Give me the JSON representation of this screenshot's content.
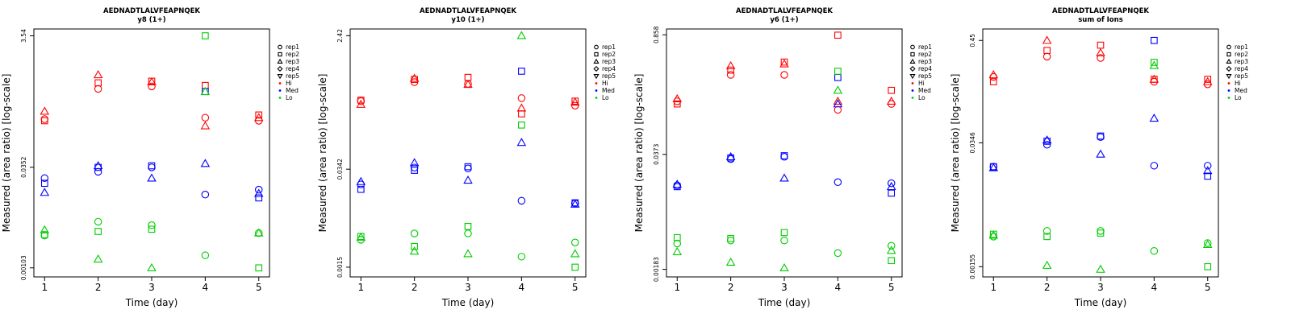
{
  "colors": {
    "Hi": "#ff0000",
    "Med": "#0000ff",
    "Lo": "#00cc00"
  },
  "legend": {
    "placement": "right",
    "reps": [
      {
        "label": "rep1",
        "symbol": "circle"
      },
      {
        "label": "rep2",
        "symbol": "square"
      },
      {
        "label": "rep3",
        "symbol": "triangle-up"
      },
      {
        "label": "rep4",
        "symbol": "diamond"
      },
      {
        "label": "rep5",
        "symbol": "triangle-down"
      }
    ],
    "groups": [
      {
        "label": "Hi",
        "color": "#ff0000"
      },
      {
        "label": "Med",
        "color": "#0000ff"
      },
      {
        "label": "Lo",
        "color": "#00cc00"
      }
    ]
  },
  "chart_data": [
    {
      "type": "scatter",
      "title": "AEDNADTLALVFEAPNQEK",
      "subtitle": "y8 (1+)",
      "xlabel": "Time (day)",
      "ylabel": "Measured (area ratio) [log-scale]",
      "log_y": true,
      "x_ticks": [
        1,
        2,
        3,
        4,
        5
      ],
      "y_ticks": [
        "0.00103",
        "0.0352",
        "3.54"
      ],
      "y_tick_values": [
        0.00103,
        0.0352,
        3.54
      ],
      "xlim": [
        0.8,
        5.2
      ],
      "ylim": [
        0.00075,
        4.5
      ],
      "series": [
        {
          "group": "Hi",
          "rep": "rep1",
          "points": [
            [
              1,
              0.19
            ],
            [
              2,
              0.55
            ],
            [
              3,
              0.6
            ],
            [
              4,
              0.2
            ],
            [
              5,
              0.18
            ]
          ]
        },
        {
          "group": "Hi",
          "rep": "rep2",
          "points": [
            [
              1,
              0.18
            ],
            [
              2,
              0.68
            ],
            [
              3,
              0.72
            ],
            [
              4,
              0.62
            ],
            [
              5,
              0.22
            ]
          ]
        },
        {
          "group": "Hi",
          "rep": "rep3",
          "points": [
            [
              1,
              0.25
            ],
            [
              2,
              0.9
            ],
            [
              3,
              0.7
            ],
            [
              4,
              0.15
            ],
            [
              5,
              0.2
            ]
          ]
        },
        {
          "group": "Med",
          "rep": "rep1",
          "points": [
            [
              1,
              0.024
            ],
            [
              2,
              0.03
            ],
            [
              3,
              0.035
            ],
            [
              4,
              0.0135
            ],
            [
              5,
              0.016
            ]
          ]
        },
        {
          "group": "Med",
          "rep": "rep2",
          "points": [
            [
              1,
              0.02
            ],
            [
              2,
              0.035
            ],
            [
              3,
              0.037
            ],
            [
              4,
              0.5
            ],
            [
              5,
              0.012
            ]
          ]
        },
        {
          "group": "Med",
          "rep": "rep3",
          "points": [
            [
              1,
              0.0145
            ],
            [
              2,
              0.037
            ],
            [
              3,
              0.024
            ],
            [
              4,
              0.04
            ],
            [
              5,
              0.014
            ]
          ]
        },
        {
          "group": "Lo",
          "rep": "rep1",
          "points": [
            [
              1,
              0.0032
            ],
            [
              2,
              0.0052
            ],
            [
              3,
              0.0046
            ],
            [
              4,
              0.0016
            ],
            [
              5,
              0.0035
            ]
          ]
        },
        {
          "group": "Lo",
          "rep": "rep2",
          "points": [
            [
              1,
              0.0033
            ],
            [
              2,
              0.0037
            ],
            [
              3,
              0.004
            ],
            [
              4,
              3.54
            ],
            [
              5,
              0.00103
            ]
          ]
        },
        {
          "group": "Lo",
          "rep": "rep3",
          "points": [
            [
              1,
              0.0039
            ],
            [
              2,
              0.0014
            ],
            [
              3,
              0.00103
            ],
            [
              4,
              0.5
            ],
            [
              5,
              0.0035
            ]
          ]
        }
      ]
    },
    {
      "type": "scatter",
      "title": "AEDNADTLALVFEAPNQEK",
      "subtitle": "y10 (1+)",
      "xlabel": "Time (day)",
      "ylabel": "Measured (area ratio) [log-scale]",
      "log_y": true,
      "x_ticks": [
        1,
        2,
        3,
        4,
        5
      ],
      "y_ticks": [
        "0.0015",
        "0.0342",
        "2.42"
      ],
      "y_tick_values": [
        0.0015,
        0.0342,
        2.42
      ],
      "xlim": [
        0.8,
        5.2
      ],
      "ylim": [
        0.0011,
        3.0
      ],
      "series": [
        {
          "group": "Hi",
          "rep": "rep1",
          "points": [
            [
              1,
              0.3
            ],
            [
              2,
              0.55
            ],
            [
              3,
              0.52
            ],
            [
              4,
              0.33
            ],
            [
              5,
              0.26
            ]
          ]
        },
        {
          "group": "Hi",
          "rep": "rep2",
          "points": [
            [
              1,
              0.31
            ],
            [
              2,
              0.6
            ],
            [
              3,
              0.64
            ],
            [
              4,
              0.2
            ],
            [
              5,
              0.3
            ]
          ]
        },
        {
          "group": "Hi",
          "rep": "rep3",
          "points": [
            [
              1,
              0.27
            ],
            [
              2,
              0.62
            ],
            [
              3,
              0.51
            ],
            [
              4,
              0.24
            ],
            [
              5,
              0.29
            ]
          ]
        },
        {
          "group": "Med",
          "rep": "rep1",
          "points": [
            [
              1,
              0.021
            ],
            [
              2,
              0.036
            ],
            [
              3,
              0.035
            ],
            [
              4,
              0.0125
            ],
            [
              5,
              0.0115
            ]
          ]
        },
        {
          "group": "Med",
          "rep": "rep2",
          "points": [
            [
              1,
              0.018
            ],
            [
              2,
              0.033
            ],
            [
              3,
              0.037
            ],
            [
              4,
              0.78
            ],
            [
              5,
              0.0117
            ]
          ]
        },
        {
          "group": "Med",
          "rep": "rep3",
          "points": [
            [
              1,
              0.023
            ],
            [
              2,
              0.042
            ],
            [
              3,
              0.024
            ],
            [
              4,
              0.08
            ],
            [
              5,
              0.0112
            ]
          ]
        },
        {
          "group": "Lo",
          "rep": "rep1",
          "points": [
            [
              1,
              0.0036
            ],
            [
              2,
              0.0044
            ],
            [
              3,
              0.0044
            ],
            [
              4,
              0.0021
            ],
            [
              5,
              0.0033
            ]
          ]
        },
        {
          "group": "Lo",
          "rep": "rep2",
          "points": [
            [
              1,
              0.004
            ],
            [
              2,
              0.0029
            ],
            [
              3,
              0.0055
            ],
            [
              4,
              0.14
            ],
            [
              5,
              0.0015
            ]
          ]
        },
        {
          "group": "Lo",
          "rep": "rep3",
          "points": [
            [
              1,
              0.0039
            ],
            [
              2,
              0.0025
            ],
            [
              3,
              0.0023
            ],
            [
              4,
              2.42
            ],
            [
              5,
              0.0023
            ]
          ]
        }
      ]
    },
    {
      "type": "scatter",
      "title": "AEDNADTLALVFEAPNQEK",
      "subtitle": "y6 (1+)",
      "xlabel": "Time (day)",
      "ylabel": "Measured (area ratio) [log-scale]",
      "log_y": true,
      "x_ticks": [
        1,
        2,
        3,
        4,
        5
      ],
      "y_ticks": [
        "0.00183",
        "0.0373",
        "0.858"
      ],
      "y_tick_values": [
        0.00183,
        0.0373,
        0.858
      ],
      "xlim": [
        0.8,
        5.2
      ],
      "ylim": [
        0.0015,
        1.0
      ],
      "series": [
        {
          "group": "Hi",
          "rep": "rep1",
          "points": [
            [
              1,
              0.15
            ],
            [
              2,
              0.3
            ],
            [
              3,
              0.3
            ],
            [
              4,
              0.12
            ],
            [
              5,
              0.14
            ]
          ]
        },
        {
          "group": "Hi",
          "rep": "rep2",
          "points": [
            [
              1,
              0.14
            ],
            [
              2,
              0.34
            ],
            [
              3,
              0.42
            ],
            [
              4,
              0.85
            ],
            [
              5,
              0.2
            ]
          ]
        },
        {
          "group": "Hi",
          "rep": "rep3",
          "points": [
            [
              1,
              0.16
            ],
            [
              2,
              0.38
            ],
            [
              3,
              0.4
            ],
            [
              4,
              0.15
            ],
            [
              5,
              0.15
            ]
          ]
        },
        {
          "group": "Med",
          "rep": "rep1",
          "points": [
            [
              1,
              0.0165
            ],
            [
              2,
              0.033
            ],
            [
              3,
              0.035
            ],
            [
              4,
              0.018
            ],
            [
              5,
              0.0175
            ]
          ]
        },
        {
          "group": "Med",
          "rep": "rep2",
          "points": [
            [
              1,
              0.016
            ],
            [
              2,
              0.034
            ],
            [
              3,
              0.036
            ],
            [
              4,
              0.28
            ],
            [
              5,
              0.0135
            ]
          ]
        },
        {
          "group": "Med",
          "rep": "rep3",
          "points": [
            [
              1,
              0.017
            ],
            [
              2,
              0.035
            ],
            [
              3,
              0.02
            ],
            [
              4,
              0.14
            ],
            [
              5,
              0.016
            ]
          ]
        },
        {
          "group": "Lo",
          "rep": "rep1",
          "points": [
            [
              1,
              0.0036
            ],
            [
              2,
              0.0039
            ],
            [
              3,
              0.0039
            ],
            [
              4,
              0.0028
            ],
            [
              5,
              0.0034
            ]
          ]
        },
        {
          "group": "Lo",
          "rep": "rep2",
          "points": [
            [
              1,
              0.0042
            ],
            [
              2,
              0.0041
            ],
            [
              3,
              0.0048
            ],
            [
              4,
              0.33
            ],
            [
              5,
              0.0023
            ]
          ]
        },
        {
          "group": "Lo",
          "rep": "rep3",
          "points": [
            [
              1,
              0.0029
            ],
            [
              2,
              0.0022
            ],
            [
              3,
              0.0019
            ],
            [
              4,
              0.2
            ],
            [
              5,
              0.003
            ]
          ]
        }
      ]
    },
    {
      "type": "scatter",
      "title": "AEDNADTLALVFEAPNQEK",
      "subtitle": "sum of Ions",
      "xlabel": "Time (day)",
      "ylabel": "Measured (area ratio) [log-scale]",
      "log_y": true,
      "x_ticks": [
        1,
        2,
        3,
        4,
        5
      ],
      "y_ticks": [
        "0.00155",
        "0.0346",
        "0.45"
      ],
      "y_tick_values": [
        0.00155,
        0.0346,
        0.45
      ],
      "xlim": [
        0.8,
        5.2
      ],
      "ylim": [
        0.0012,
        0.6
      ],
      "series": [
        {
          "group": "Hi",
          "rep": "rep1",
          "points": [
            [
              1,
              0.18
            ],
            [
              2,
              0.3
            ],
            [
              3,
              0.29
            ],
            [
              4,
              0.16
            ],
            [
              5,
              0.15
            ]
          ]
        },
        {
          "group": "Hi",
          "rep": "rep2",
          "points": [
            [
              1,
              0.16
            ],
            [
              2,
              0.35
            ],
            [
              3,
              0.4
            ],
            [
              4,
              0.17
            ],
            [
              5,
              0.17
            ]
          ]
        },
        {
          "group": "Hi",
          "rep": "rep3",
          "points": [
            [
              1,
              0.19
            ],
            [
              2,
              0.45
            ],
            [
              3,
              0.33
            ],
            [
              4,
              0.17
            ],
            [
              5,
              0.16
            ]
          ]
        },
        {
          "group": "Med",
          "rep": "rep1",
          "points": [
            [
              1,
              0.019
            ],
            [
              2,
              0.033
            ],
            [
              3,
              0.04
            ],
            [
              4,
              0.0195
            ],
            [
              5,
              0.0195
            ]
          ]
        },
        {
          "group": "Med",
          "rep": "rep2",
          "points": [
            [
              1,
              0.019
            ],
            [
              2,
              0.036
            ],
            [
              3,
              0.041
            ],
            [
              4,
              0.45
            ],
            [
              5,
              0.015
            ]
          ]
        },
        {
          "group": "Med",
          "rep": "rep3",
          "points": [
            [
              1,
              0.0185
            ],
            [
              2,
              0.037
            ],
            [
              3,
              0.026
            ],
            [
              4,
              0.064
            ],
            [
              5,
              0.0172
            ]
          ]
        },
        {
          "group": "Lo",
          "rep": "rep1",
          "points": [
            [
              1,
              0.0033
            ],
            [
              2,
              0.0038
            ],
            [
              3,
              0.0038
            ],
            [
              4,
              0.0023
            ],
            [
              5,
              0.0028
            ]
          ]
        },
        {
          "group": "Lo",
          "rep": "rep2",
          "points": [
            [
              1,
              0.0035
            ],
            [
              2,
              0.0033
            ],
            [
              3,
              0.0036
            ],
            [
              4,
              0.26
            ],
            [
              5,
              0.00155
            ]
          ]
        },
        {
          "group": "Lo",
          "rep": "rep3",
          "points": [
            [
              1,
              0.0034
            ],
            [
              2,
              0.0016
            ],
            [
              3,
              0.00145
            ],
            [
              4,
              0.24
            ],
            [
              5,
              0.0027
            ]
          ]
        }
      ]
    }
  ]
}
